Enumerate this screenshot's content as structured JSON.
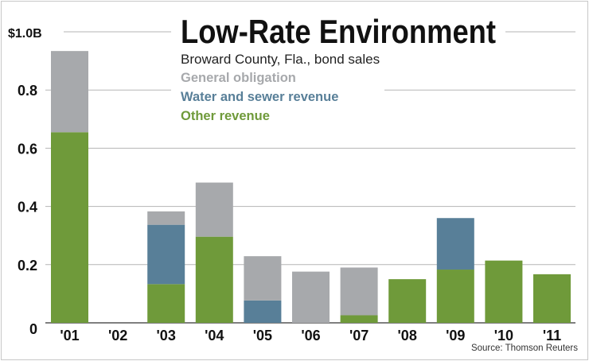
{
  "chart_data": {
    "type": "bar",
    "stacked": true,
    "title": "Low-Rate Environment",
    "subtitle": "Broward County, Fla., bond sales",
    "source": "Source: Thomson Reuters",
    "categories": [
      "'01",
      "'02",
      "'03",
      "'04",
      "'05",
      "'06",
      "'07",
      "'08",
      "'09",
      "'10",
      "'11"
    ],
    "series": [
      {
        "name": "Other revenue",
        "color": "#6f9a3a",
        "values": [
          0.655,
          0,
          0.133,
          0.296,
          0,
          0,
          0.026,
          0.15,
          0.183,
          0.214,
          0.167
        ]
      },
      {
        "name": "Water and sewer revenue",
        "color": "#587f98",
        "values": [
          0,
          0,
          0.204,
          0,
          0.077,
          0,
          0,
          0,
          0.177,
          0,
          0
        ]
      },
      {
        "name": "General obligation",
        "color": "#a7a9ac",
        "values": [
          0.279,
          0,
          0.046,
          0.186,
          0.152,
          0.176,
          0.164,
          0,
          0,
          0,
          0
        ]
      }
    ],
    "legend_order": [
      "General obligation",
      "Water and sewer revenue",
      "Other revenue"
    ],
    "y_ticks": [
      {
        "value": 0,
        "label": "0"
      },
      {
        "value": 0.2,
        "label": "0.2"
      },
      {
        "value": 0.4,
        "label": "0.4"
      },
      {
        "value": 0.6,
        "label": "0.6"
      },
      {
        "value": 0.8,
        "label": "0.8"
      },
      {
        "value": 1.0,
        "label": "$1.0B"
      }
    ],
    "ylabel": "",
    "xlabel": "",
    "ylim": [
      0,
      1.0
    ],
    "grid": true,
    "legend_placement": "top-center"
  }
}
